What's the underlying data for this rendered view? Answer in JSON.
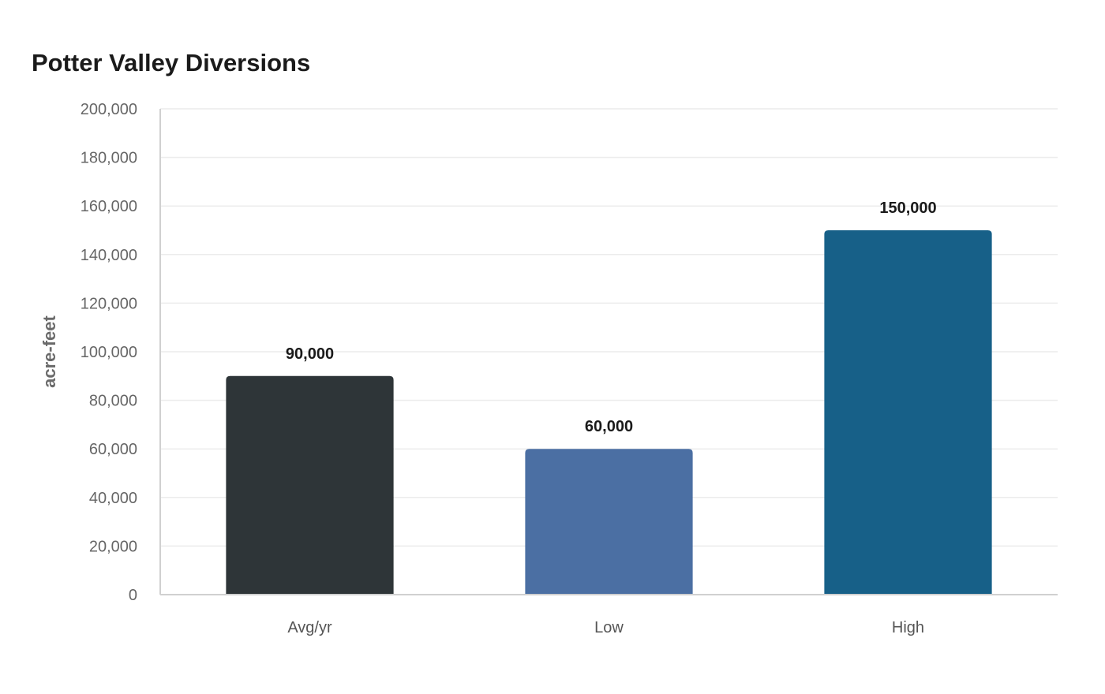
{
  "chart_data": {
    "type": "bar",
    "title": "Potter Valley Diversions",
    "xlabel": "",
    "ylabel": "acre-feet",
    "categories": [
      "Avg/yr",
      "Low",
      "High"
    ],
    "values": [
      90000,
      60000,
      150000
    ],
    "value_labels": [
      "90,000",
      "60,000",
      "150,000"
    ],
    "colors": [
      "#2e3538",
      "#4b6fa3",
      "#176088"
    ],
    "ylim": [
      0,
      200000
    ],
    "yticks": [
      0,
      20000,
      40000,
      60000,
      80000,
      100000,
      120000,
      140000,
      160000,
      180000,
      200000
    ],
    "ytick_labels": [
      "0",
      "20,000",
      "40,000",
      "60,000",
      "80,000",
      "100,000",
      "120,000",
      "140,000",
      "160,000",
      "180,000",
      "200,000"
    ],
    "grid": true,
    "legend": "none"
  }
}
